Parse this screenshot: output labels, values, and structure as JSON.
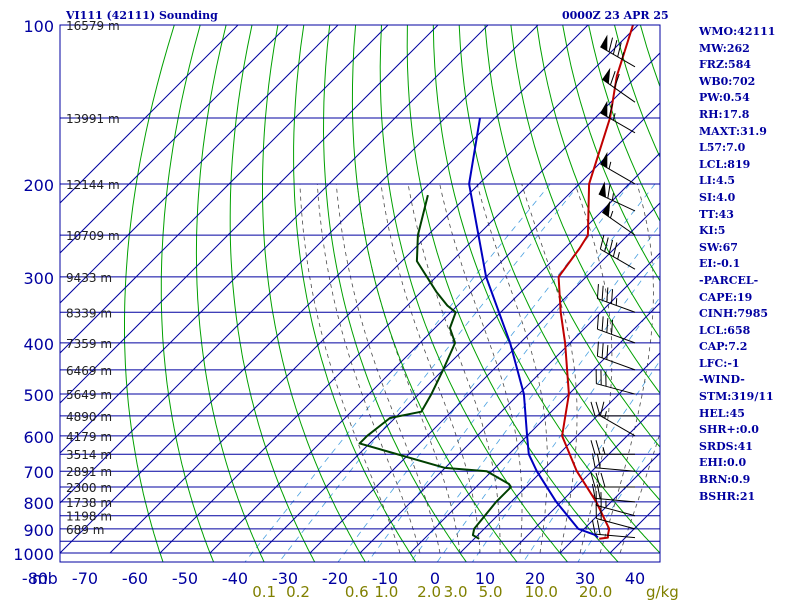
{
  "header": {
    "station_title": "VI111 (42111) Sounding",
    "valid_time": "0000Z 23 APR 25"
  },
  "indices": [
    "WMO:42111",
    "MW:262",
    "FRZ:584",
    "WB0:702",
    "PW:0.54",
    "RH:17.8",
    "MAXT:31.9",
    "L57:7.0",
    "LCL:819",
    "LI:4.5",
    "SI:4.0",
    "TT:43",
    "KI:5",
    "SW:67",
    "EI:-0.1",
    "-PARCEL-",
    "CAPE:19",
    "CINH:7985",
    "LCL:658",
    "CAP:7.2",
    "LFC:-1",
    "-WIND-",
    "STM:319/11",
    "HEL:45",
    "SHR+:0.0",
    "SRDS:41",
    "EHI:0.0",
    "BRN:0.9",
    "BSHR:21"
  ],
  "colors": {
    "background": "#ffffff",
    "isobar_isotherm": "#0000a0",
    "dry_adiabat": "#00a000",
    "moist_adiabat": "#4a4a4a",
    "mixing_ratio": "#4aa0e0",
    "temperature": "#c00000",
    "dewpoint": "#004000",
    "parcel": "#0000c0",
    "mixing_ratio_labels": "#808000",
    "text": "#0000a0"
  },
  "chart_data": {
    "type": "line",
    "chart_kind": "skew-T log-P sounding diagram",
    "xlabel": "",
    "ylabel": "mb",
    "pressure_tick_labels": [
      "100",
      "200",
      "300",
      "400",
      "500",
      "600",
      "700",
      "800",
      "900",
      "1000"
    ],
    "pressure_ticks": [
      100,
      200,
      300,
      400,
      500,
      600,
      700,
      800,
      900,
      1000
    ],
    "temperature_tick_labels": [
      "-80",
      "-70",
      "-60",
      "-50",
      "-40",
      "-30",
      "-20",
      "-10",
      "0",
      "10",
      "20",
      "30",
      "40"
    ],
    "mixing_ratio_labels": [
      {
        "label": "0.1",
        "w": 0.1
      },
      {
        "label": "0.2",
        "w": 0.2
      },
      {
        "label": "0.6",
        "w": 0.6
      },
      {
        "label": "1.0",
        "w": 1.0
      },
      {
        "label": "2.0",
        "w": 2.0
      },
      {
        "label": "3.0",
        "w": 3.0
      },
      {
        "label": "5.0",
        "w": 5.0
      },
      {
        "label": "10.0",
        "w": 10.0
      },
      {
        "label": "20.0",
        "w": 20.0
      }
    ],
    "mixing_ratio_unit": "g/kg",
    "height_labels": [
      {
        "p": 100,
        "label": "16579 m"
      },
      {
        "p": 150,
        "label": "13991 m"
      },
      {
        "p": 200,
        "label": "12144 m"
      },
      {
        "p": 250,
        "label": "10709 m"
      },
      {
        "p": 300,
        "label": "9433 m"
      },
      {
        "p": 350,
        "label": "8339 m"
      },
      {
        "p": 400,
        "label": "7359 m"
      },
      {
        "p": 450,
        "label": "6469 m"
      },
      {
        "p": 500,
        "label": "5649 m"
      },
      {
        "p": 550,
        "label": "4890 m"
      },
      {
        "p": 600,
        "label": "4179 m"
      },
      {
        "p": 650,
        "label": "3514 m"
      },
      {
        "p": 700,
        "label": "2891 m"
      },
      {
        "p": 750,
        "label": "2300 m"
      },
      {
        "p": 800,
        "label": "1738 m"
      },
      {
        "p": 850,
        "label": "1198 m"
      },
      {
        "p": 900,
        "label": "689 m"
      }
    ],
    "series": [
      {
        "points": [
          [
            100,
            -71
          ],
          [
            125,
            -64
          ],
          [
            150,
            -57
          ],
          [
            200,
            -48
          ],
          [
            250,
            -38
          ],
          [
            265,
            -37
          ],
          [
            300,
            -35.5
          ],
          [
            350,
            -28
          ],
          [
            400,
            -21
          ],
          [
            500,
            -10
          ],
          [
            600,
            -3
          ],
          [
            700,
            7
          ],
          [
            800,
            17
          ],
          [
            900,
            25
          ],
          [
            925,
            26
          ],
          [
            935,
            26.5
          ],
          [
            940,
            25
          ]
        ]
      },
      {
        "points": [
          [
            210,
            -78
          ],
          [
            250,
            -72
          ],
          [
            280,
            -67
          ],
          [
            320,
            -57
          ],
          [
            340,
            -52
          ],
          [
            350,
            -49
          ],
          [
            375,
            -47
          ],
          [
            400,
            -43
          ],
          [
            450,
            -40
          ],
          [
            500,
            -37.5
          ],
          [
            540,
            -36
          ],
          [
            555,
            -41
          ],
          [
            600,
            -42
          ],
          [
            620,
            -42
          ],
          [
            690,
            -20
          ],
          [
            700,
            -11
          ],
          [
            740,
            -4
          ],
          [
            750,
            -3
          ],
          [
            790,
            -3
          ],
          [
            800,
            -3
          ],
          [
            900,
            -2
          ],
          [
            925,
            -1
          ],
          [
            940,
            1
          ]
        ]
      },
      {
        "points": [
          [
            150,
            -83
          ],
          [
            200,
            -72
          ],
          [
            300,
            -50
          ],
          [
            400,
            -32
          ],
          [
            500,
            -19
          ],
          [
            600,
            -10
          ],
          [
            650,
            -6
          ],
          [
            700,
            -1
          ],
          [
            800,
            9
          ],
          [
            900,
            18.8
          ],
          [
            925,
            23.5
          ],
          [
            935,
            24.5
          ]
        ]
      }
    ],
    "wind_barbs": [
      {
        "p": 120,
        "dir": 300,
        "kt": 85
      },
      {
        "p": 140,
        "dir": 305,
        "kt": 70
      },
      {
        "p": 160,
        "dir": 300,
        "kt": 65
      },
      {
        "p": 200,
        "dir": 300,
        "kt": 55
      },
      {
        "p": 225,
        "dir": 295,
        "kt": 65
      },
      {
        "p": 250,
        "dir": 305,
        "kt": 55
      },
      {
        "p": 290,
        "dir": 300,
        "kt": 45
      },
      {
        "p": 350,
        "dir": 290,
        "kt": 45
      },
      {
        "p": 400,
        "dir": 290,
        "kt": 40
      },
      {
        "p": 450,
        "dir": 290,
        "kt": 30
      },
      {
        "p": 500,
        "dir": 285,
        "kt": 30
      },
      {
        "p": 550,
        "dir": 270,
        "kt": 20
      },
      {
        "p": 600,
        "dir": 300,
        "kt": 15
      },
      {
        "p": 650,
        "dir": 270,
        "kt": 25
      },
      {
        "p": 700,
        "dir": 275,
        "kt": 20
      },
      {
        "p": 750,
        "dir": 270,
        "kt": 30
      },
      {
        "p": 800,
        "dir": 275,
        "kt": 20
      },
      {
        "p": 850,
        "dir": 285,
        "kt": 25
      },
      {
        "p": 900,
        "dir": 285,
        "kt": 20
      },
      {
        "p": 935,
        "dir": 275,
        "kt": 20
      }
    ]
  }
}
